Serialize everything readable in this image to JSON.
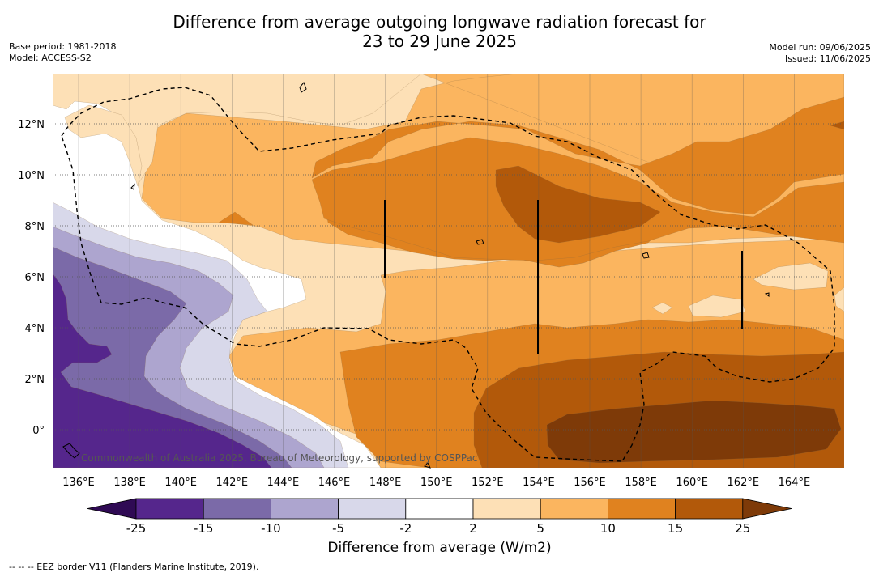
{
  "title_line1": "Difference from average outgoing longwave radiation forecast for",
  "title_line2": "23 to 29 June 2025",
  "base_period": "Base period: 1981-2018",
  "model": "Model: ACCESS-S2",
  "model_run": "Model run: 09/06/2025",
  "issued": "Issued: 11/06/2025",
  "copyright": "Commonwealth of Australia 2025, Bureau of Meteorology, supported by COSPPac",
  "colorbar_label": "Difference from average (W/m2)",
  "footnote": "--  --  -- EEZ border V11 (Flanders Marine Institute, 2019).",
  "lon_ticks": [
    "136°E",
    "138°E",
    "140°E",
    "142°E",
    "144°E",
    "146°E",
    "148°E",
    "150°E",
    "152°E",
    "154°E",
    "156°E",
    "158°E",
    "160°E",
    "162°E",
    "164°E"
  ],
  "lat_ticks": [
    "12°N",
    "10°N",
    "8°N",
    "6°N",
    "4°N",
    "2°N",
    "0°"
  ],
  "colorbar": {
    "ticks": [
      "-25",
      "-15",
      "-10",
      "-5",
      "-2",
      "2",
      "5",
      "10",
      "15",
      "25"
    ],
    "colors": [
      "#2f0a54",
      "#55268c",
      "#7b6aa8",
      "#ada5cf",
      "#d8d8ea",
      "#ffffff",
      "#fde0b6",
      "#fbb55f",
      "#e0821f",
      "#b2590a",
      "#7e3a08"
    ]
  },
  "palette": {
    "purple_dark": "#55268c",
    "purple_mid": "#7b6aa8",
    "purple_light": "#ada5cf",
    "lavender": "#d8d8ea",
    "white": "#ffffff",
    "peach": "#fde0b6",
    "light_orange": "#fbb55f",
    "orange": "#e0821f",
    "dark_orange": "#b2590a",
    "brown": "#7e3a08"
  }
}
